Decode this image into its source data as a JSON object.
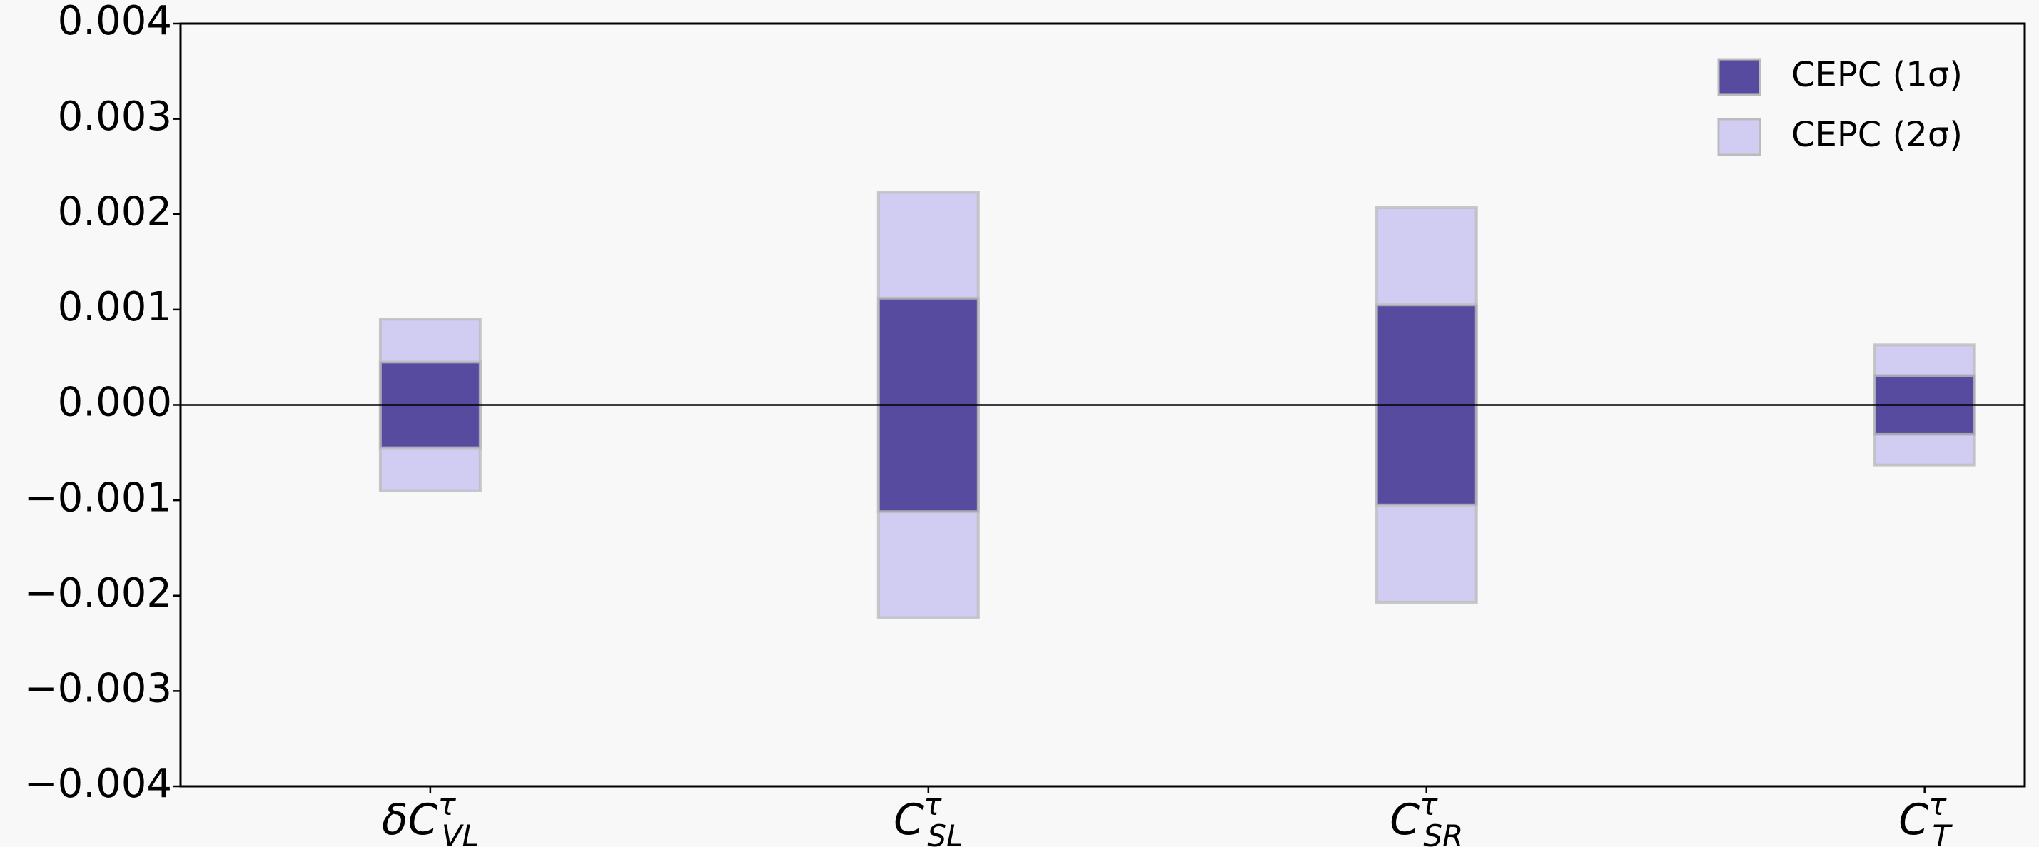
{
  "chart_data": {
    "type": "bar",
    "categories": [
      {
        "base": "δC",
        "sup": "τ",
        "sub": "VL"
      },
      {
        "base": "C",
        "sup": "τ",
        "sub": "SL"
      },
      {
        "base": "C",
        "sup": "τ",
        "sub": "SR"
      },
      {
        "base": "C",
        "sup": "τ",
        "sub": "T"
      }
    ],
    "series": [
      {
        "name": "CEPC (2σ)",
        "color": "#d0ccf2",
        "values": [
          0.0009,
          0.00223,
          0.00207,
          0.00063
        ]
      },
      {
        "name": "CEPC (1σ)",
        "color": "#574ba0",
        "values": [
          0.00045,
          0.00112,
          0.00105,
          0.00031
        ]
      }
    ],
    "ylim": [
      -0.004,
      0.004
    ],
    "yticks": [
      {
        "value": -0.004,
        "label": "−0.004"
      },
      {
        "value": -0.003,
        "label": "−0.003"
      },
      {
        "value": -0.002,
        "label": "−0.002"
      },
      {
        "value": -0.001,
        "label": "−0.001"
      },
      {
        "value": 0,
        "label": "0.000"
      },
      0.001,
      0.002,
      0.003,
      0.004
    ],
    "legend": "upper right",
    "grid": false
  }
}
